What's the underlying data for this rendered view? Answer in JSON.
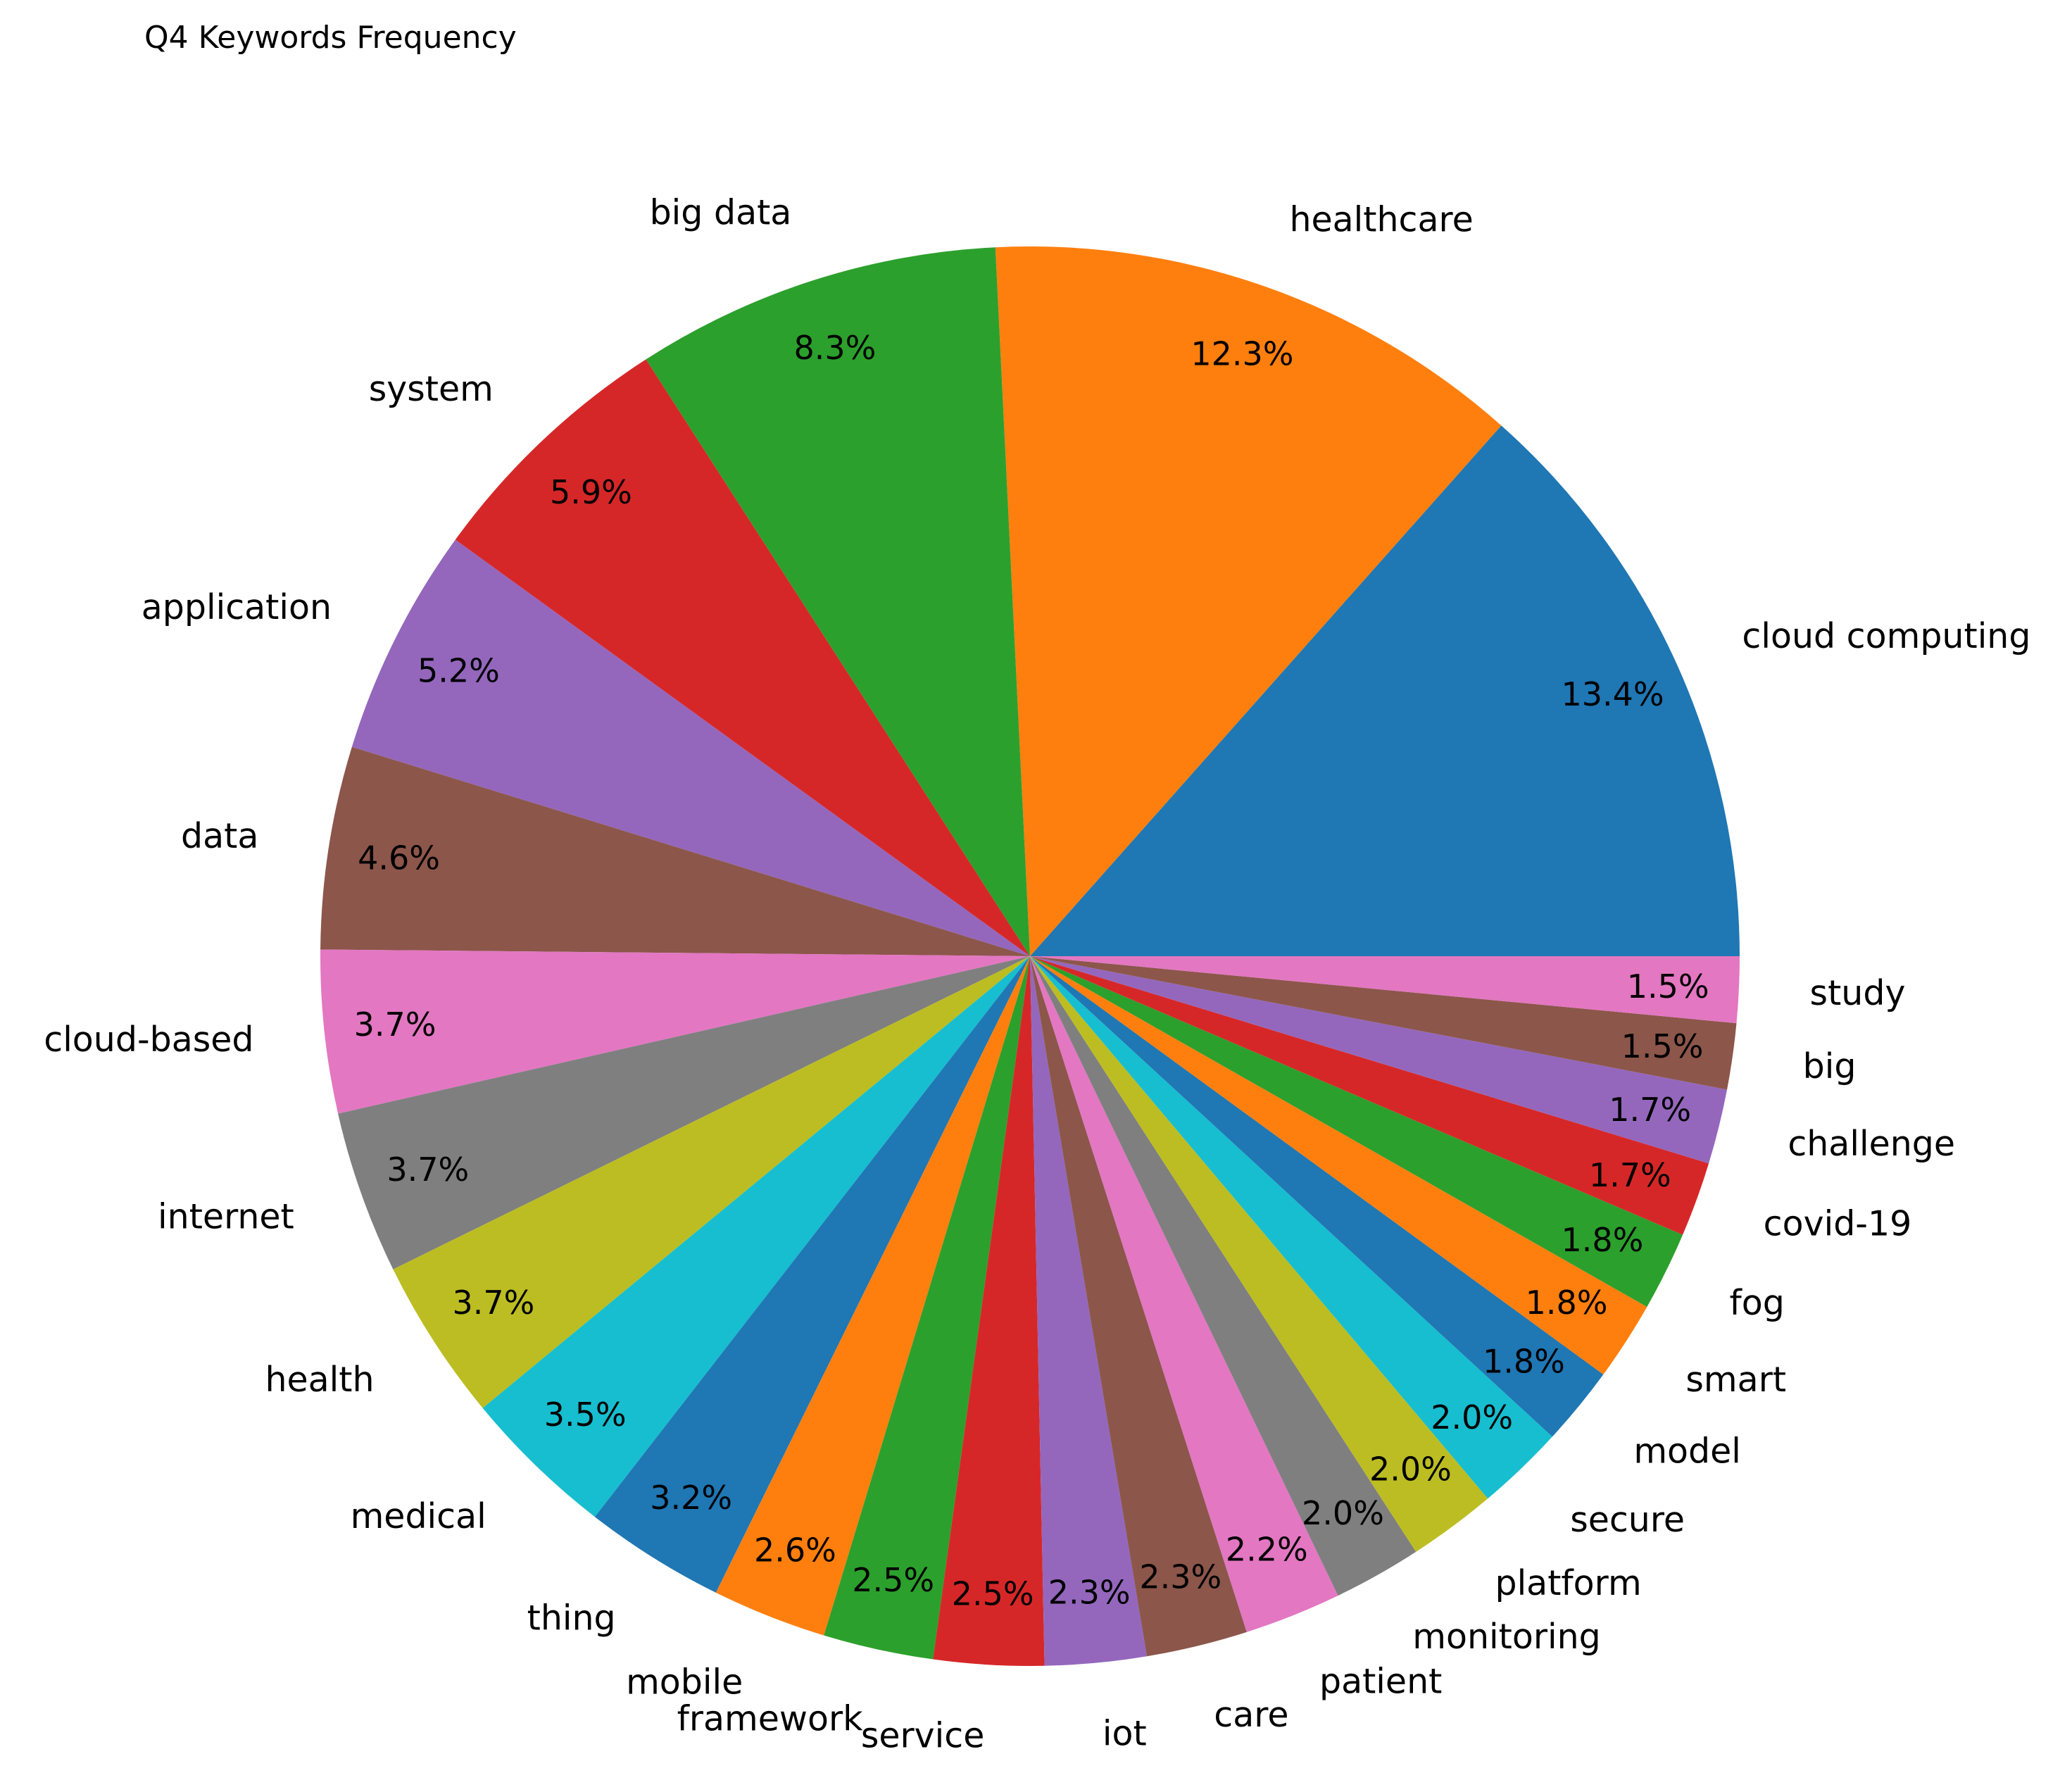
{
  "chart_data": {
    "type": "pie",
    "title": "Q4 Keywords Frequency",
    "start_angle_deg": 0,
    "direction": "counterclockwise",
    "labels": [
      "cloud computing",
      "healthcare",
      "big data",
      "system",
      "application",
      "data",
      "cloud-based",
      "internet",
      "health",
      "medical",
      "thing",
      "mobile",
      "framework",
      "service",
      "iot",
      "care",
      "patient",
      "monitoring",
      "platform",
      "secure",
      "model",
      "smart",
      "fog",
      "covid-19",
      "challenge",
      "big",
      "study"
    ],
    "values": [
      13.4,
      12.3,
      8.3,
      5.9,
      5.2,
      4.6,
      3.7,
      3.7,
      3.7,
      3.5,
      3.2,
      2.6,
      2.5,
      2.5,
      2.3,
      2.3,
      2.2,
      2.0,
      2.0,
      2.0,
      1.8,
      1.8,
      1.8,
      1.7,
      1.7,
      1.5,
      1.5
    ],
    "percent_labels": [
      "13.4%",
      "12.3%",
      "8.3%",
      "5.9%",
      "5.2%",
      "4.6%",
      "3.7%",
      "3.7%",
      "3.7%",
      "3.5%",
      "3.2%",
      "2.6%",
      "2.5%",
      "2.5%",
      "2.3%",
      "2.3%",
      "2.2%",
      "2.0%",
      "2.0%",
      "2.0%",
      "1.8%",
      "1.8%",
      "1.8%",
      "1.7%",
      "1.7%",
      "1.5%",
      "1.5%"
    ],
    "colors": [
      "#1f77b4",
      "#ff7f0e",
      "#2ca02c",
      "#d62728",
      "#9467bd",
      "#8c564b",
      "#e377c2",
      "#7f7f7f",
      "#bcbd22",
      "#17becf",
      "#1f77b4",
      "#ff7f0e",
      "#2ca02c",
      "#d62728",
      "#9467bd",
      "#8c564b",
      "#e377c2",
      "#7f7f7f",
      "#bcbd22",
      "#17becf",
      "#1f77b4",
      "#ff7f0e",
      "#2ca02c",
      "#d62728",
      "#9467bd",
      "#8c564b",
      "#e377c2"
    ],
    "legend": "none"
  }
}
